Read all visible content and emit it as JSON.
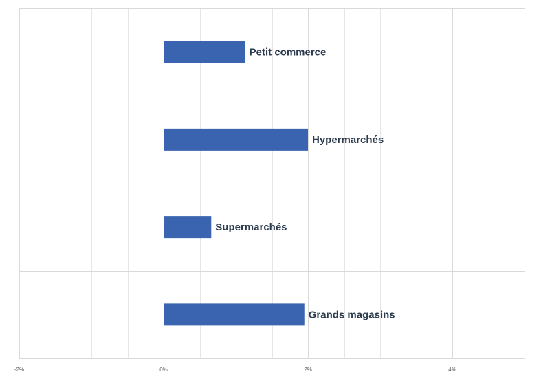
{
  "chart_data": {
    "type": "bar",
    "orientation": "horizontal",
    "categories": [
      "Petit commerce",
      "Hypermarchés",
      "Supermarchés",
      "Grands magasins"
    ],
    "values": [
      1.13,
      2.0,
      0.66,
      1.95
    ],
    "unit": "%",
    "xlim": [
      -2,
      5
    ],
    "xticks": [
      -2,
      0,
      2,
      4
    ],
    "xtick_labels": [
      "-2%",
      "0%",
      "2%",
      "4%"
    ],
    "grid": true,
    "legend": "none",
    "data_labels": "category names at bar end",
    "colors": {
      "bar": "#3a64b0",
      "label": "#2b3a4e",
      "grid": "#d9d9d9"
    }
  }
}
